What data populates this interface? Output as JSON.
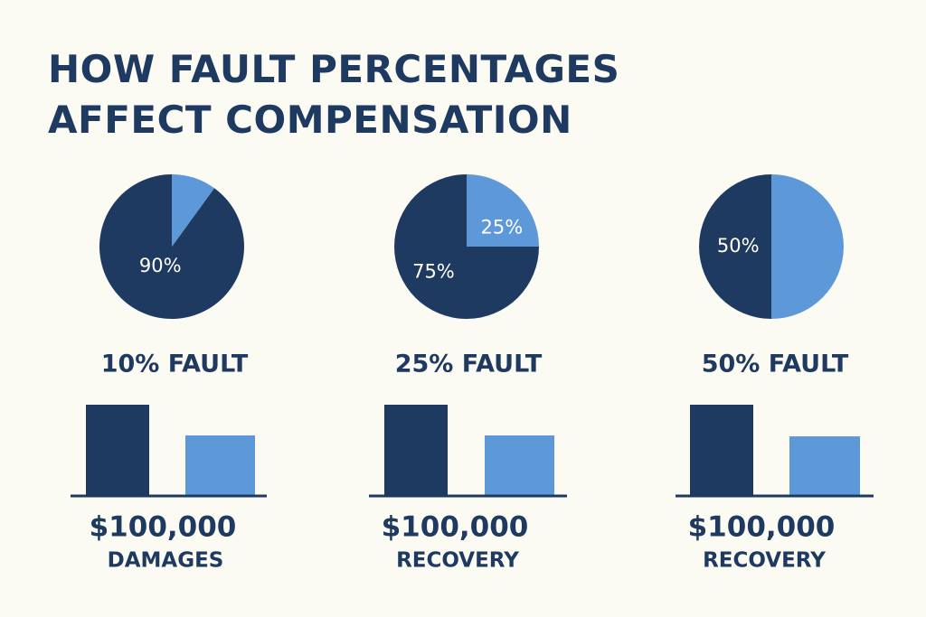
{
  "title_lines": [
    "HOW FAULT PERCENTAGES",
    "AFFECT COMPENSATION"
  ],
  "colors": {
    "background": "#fcfbf3",
    "title": "#1e3a60",
    "dark": "#1e3a60",
    "light": "#5d98d8",
    "slice_label": "#ffffff",
    "axis": "#1e3a60"
  },
  "chart_data": [
    {
      "type": "pie",
      "slices": [
        {
          "value": 90,
          "label": "90%",
          "color": "#1e3a60"
        },
        {
          "value": 10,
          "label": "",
          "color": "#5d98d8"
        }
      ],
      "caption": "10% FAULT"
    },
    {
      "type": "pie",
      "slices": [
        {
          "value": 75,
          "label": "75%",
          "color": "#1e3a60"
        },
        {
          "value": 25,
          "label": "25%",
          "color": "#5d98d8"
        }
      ],
      "caption": "25% FAULT"
    },
    {
      "type": "pie",
      "slices": [
        {
          "value": 50,
          "label": "50%",
          "color": "#1e3a60"
        },
        {
          "value": 50,
          "label": "",
          "color": "#5d98d8"
        }
      ],
      "caption": "50% FAULT"
    },
    {
      "type": "bar",
      "values": [
        100,
        66
      ],
      "colors": [
        "#1e3a60",
        "#5d98d8"
      ],
      "value_label": "$100,000",
      "xlabel": "DAMAGES"
    },
    {
      "type": "bar",
      "values": [
        100,
        66
      ],
      "colors": [
        "#1e3a60",
        "#5d98d8"
      ],
      "value_label": "$100,000",
      "xlabel": "RECOVERY"
    },
    {
      "type": "bar",
      "values": [
        100,
        65
      ],
      "colors": [
        "#1e3a60",
        "#5d98d8"
      ],
      "value_label": "$100,000",
      "xlabel": "RECOVERY"
    }
  ]
}
